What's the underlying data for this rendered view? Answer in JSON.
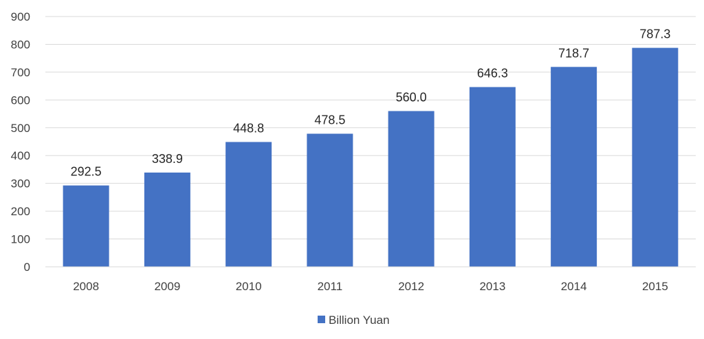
{
  "chart_data": {
    "type": "bar",
    "categories": [
      "2008",
      "2009",
      "2010",
      "2011",
      "2012",
      "2013",
      "2014",
      "2015"
    ],
    "series": [
      {
        "name": "Billion Yuan",
        "values": [
          292.5,
          338.9,
          448.8,
          478.5,
          560.0,
          646.3,
          718.7,
          787.3
        ],
        "labels": [
          "292.5",
          "338.9",
          "448.8",
          "478.5",
          "560.0",
          "646.3",
          "718.7",
          "787.3"
        ]
      }
    ],
    "title": "",
    "xlabel": "",
    "ylabel": "",
    "ylim": [
      0,
      900
    ],
    "yticks": [
      "0",
      "100",
      "200",
      "300",
      "400",
      "500",
      "600",
      "700",
      "800",
      "900"
    ],
    "grid": true,
    "legend_position": "bottom",
    "colors": {
      "bar": "#4472C4",
      "grid": "#D9D9D9",
      "axis_text": "#404040",
      "data_label": "#262626"
    }
  }
}
